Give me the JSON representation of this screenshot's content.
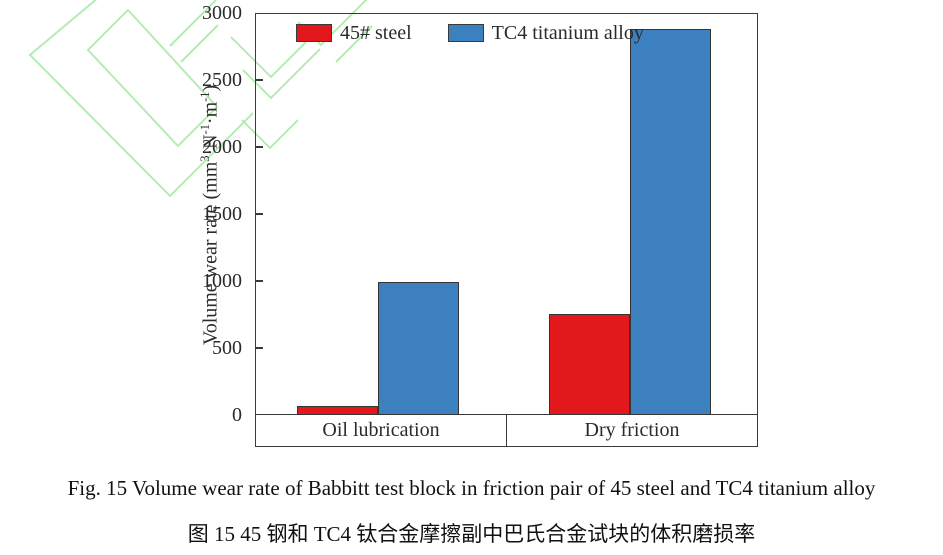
{
  "watermark": {
    "name": "green-logo-watermark",
    "color": "#b4ecb4"
  },
  "chart_data": {
    "type": "bar",
    "categories": [
      "Oil lubrication",
      "Dry friction"
    ],
    "series": [
      {
        "name": "45# steel",
        "color": "#e3181c",
        "values": [
          65,
          750
        ]
      },
      {
        "name": "TC4 titanium alloy",
        "color": "#3d80c0",
        "values": [
          990,
          2880
        ]
      }
    ],
    "ylabel": "Volume wear rate (mm3·N-1·m-1)",
    "ylabel_segments": [
      {
        "t": "Volume wear rate (mm"
      },
      {
        "t": "3",
        "sup": true
      },
      {
        "t": "·N"
      },
      {
        "t": "-1",
        "sup": true
      },
      {
        "t": "·m"
      },
      {
        "t": "-1",
        "sup": true
      },
      {
        "t": ")"
      }
    ],
    "yticks": [
      0,
      500,
      1000,
      1500,
      2000,
      2500,
      3000
    ],
    "ylim": [
      0,
      3000
    ],
    "xlabel": "",
    "title": "",
    "grid": false,
    "legend_position": "top-inside",
    "axis_color": "#3a3a3a"
  },
  "captions": {
    "english": "Fig. 15 Volume wear rate of Babbitt test block in friction pair of 45 steel and TC4 titanium alloy",
    "chinese": "图 15 45 钢和 TC4 钛合金摩擦副中巴氏合金试块的体积磨损率"
  }
}
